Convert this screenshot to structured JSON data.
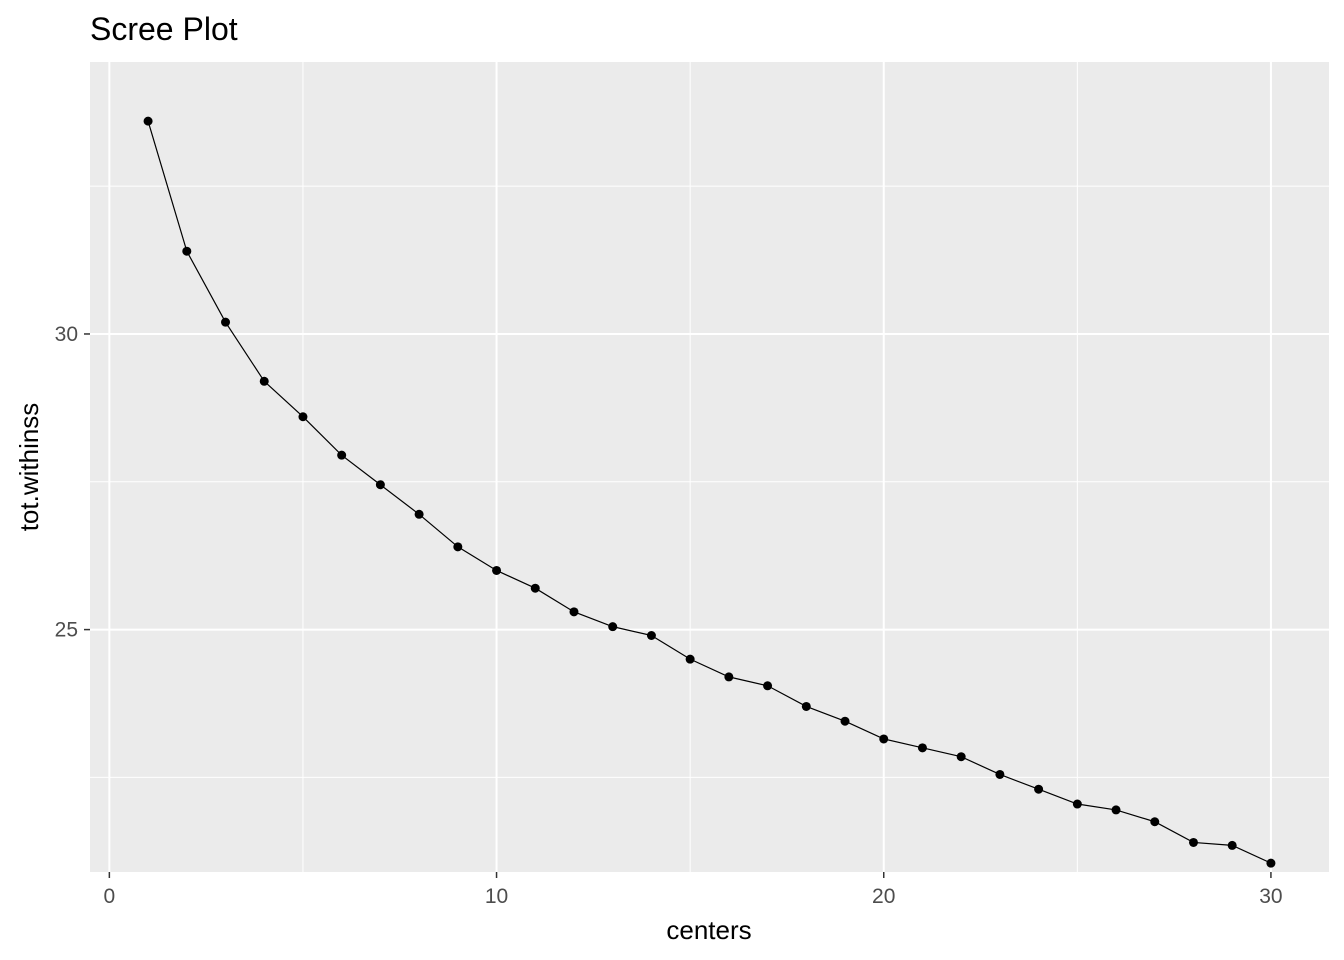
{
  "chart_data": {
    "type": "line",
    "title": "Scree Plot",
    "xlabel": "centers",
    "ylabel": "tot.withinss",
    "xlim": [
      -0.5,
      31.5
    ],
    "ylim": [
      20.9,
      34.6
    ],
    "x_ticks": [
      0,
      10,
      20,
      30
    ],
    "x_minor": [
      5,
      15,
      25
    ],
    "y_ticks": [
      25,
      30
    ],
    "y_minor": [
      22.5,
      27.5,
      32.5
    ],
    "grid": true,
    "colors": {
      "panel": "#ebebeb",
      "grid": "#ffffff",
      "line": "#000000",
      "point": "#000000",
      "tick_text": "#4d4d4d"
    },
    "series": [
      {
        "x": [
          1,
          2,
          3,
          4,
          5,
          6,
          7,
          8,
          9,
          10,
          11,
          12,
          13,
          14,
          15,
          16,
          17,
          18,
          19,
          20,
          21,
          22,
          23,
          24,
          25,
          26,
          27,
          28,
          29,
          30
        ],
        "values": [
          33.6,
          31.4,
          30.2,
          29.2,
          28.6,
          27.95,
          27.45,
          26.95,
          26.4,
          26.0,
          25.7,
          25.3,
          25.05,
          24.9,
          24.5,
          24.2,
          24.05,
          23.7,
          23.45,
          23.15,
          23.0,
          22.85,
          22.55,
          22.3,
          22.05,
          21.95,
          21.75,
          21.4,
          21.35,
          21.05
        ]
      }
    ]
  }
}
